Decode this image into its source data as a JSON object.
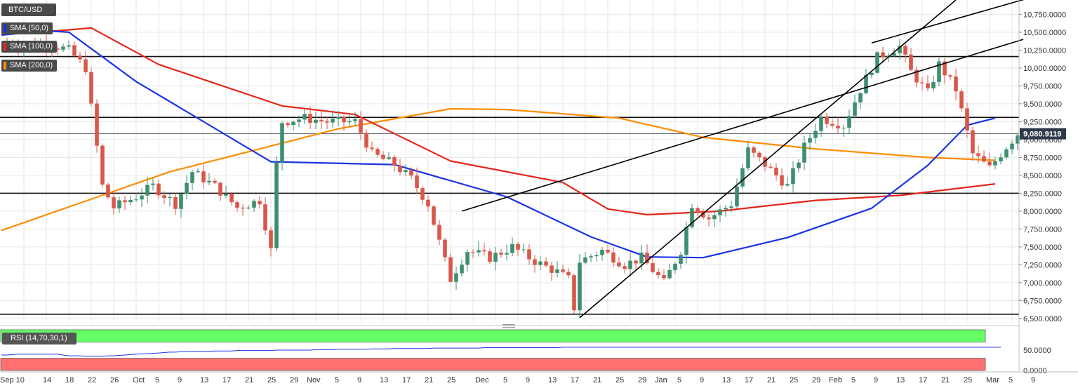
{
  "symbol": "BTC/USD",
  "indicators": [
    {
      "label": "SMA (50,0)",
      "color": "#1a33e6"
    },
    {
      "label": "SMA (100,0)",
      "color": "#e6261a"
    },
    {
      "label": "SMA (200,0)",
      "color": "#ff8c00"
    }
  ],
  "rsi_label": "RSI (14,70,30,1)",
  "colors": {
    "up": "#3d8f6e",
    "down": "#d9574a",
    "grid": "#e6e6e6",
    "price_tag": "#2f3a4a",
    "overbought_zone": "#66ff66",
    "oversold_zone": "#ff7070",
    "rsi_line": "#1a33e6"
  },
  "chart_data": {
    "type": "candlestick",
    "price_axis": {
      "ylim": [
        6450,
        10950
      ],
      "ticks": [
        "6,500.0000",
        "6,750.0000",
        "7,000.0000",
        "7,250.0000",
        "7,500.0000",
        "7,750.0000",
        "8,000.0000",
        "8,250.0000",
        "8,500.0000",
        "8,750.0000",
        "9,000.0000",
        "9,250.0000",
        "9,500.0000",
        "9,750.0000",
        "10,000.0000",
        "10,250.0000",
        "10,500.0000",
        "10,750.0000"
      ]
    },
    "last_price": "9,080.9119",
    "last_price_value": 9080.9,
    "date_labels": [
      "Sep 10",
      "14",
      "18",
      "22",
      "26",
      "Oct",
      "5",
      "9",
      "13",
      "17",
      "21",
      "25",
      "29",
      "Nov",
      "5",
      "9",
      "13",
      "17",
      "21",
      "25",
      "Dec",
      "5",
      "9",
      "13",
      "17",
      "21",
      "25",
      "29",
      "Jan",
      "5",
      "9",
      "13",
      "17",
      "21",
      "25",
      "29",
      "Feb",
      "5",
      "9",
      "13",
      "17",
      "21",
      "25",
      "Mar",
      "5",
      "9"
    ],
    "horizontal_levels": [
      10160,
      9310,
      8250,
      6560
    ],
    "trendlines": [
      {
        "from": [
          "Dec 18",
          6510
        ],
        "to": [
          "Feb 23",
          10950
        ]
      },
      {
        "from": [
          "Nov 27",
          8000
        ],
        "to": [
          "Mar 6",
          10400
        ]
      },
      {
        "from": [
          "Feb 8",
          10350
        ],
        "to": [
          "Mar 8",
          11000
        ]
      }
    ],
    "anchors": [
      [
        "Sep 6",
        10350
      ],
      [
        "Sep 10",
        10300
      ],
      [
        "Sep 14",
        10350
      ],
      [
        "Sep 18",
        10250
      ],
      [
        "Sep 21",
        10000
      ],
      [
        "Sep 24",
        8350
      ],
      [
        "Sep 26",
        8050
      ],
      [
        "Sep 30",
        8200
      ],
      [
        "Oct 3",
        8350
      ],
      [
        "Oct 7",
        8100
      ],
      [
        "Oct 10",
        8550
      ],
      [
        "Oct 14",
        8350
      ],
      [
        "Oct 18",
        8050
      ],
      [
        "Oct 22",
        8150
      ],
      [
        "Oct 24",
        7450
      ],
      [
        "Oct 25",
        8650
      ],
      [
        "Oct 26",
        9250
      ],
      [
        "Oct 30",
        9300
      ],
      [
        "Nov 3",
        9250
      ],
      [
        "Nov 8",
        9250
      ],
      [
        "Nov 11",
        8800
      ],
      [
        "Nov 15",
        8650
      ],
      [
        "Nov 18",
        8450
      ],
      [
        "Nov 21",
        8100
      ],
      [
        "Nov 24",
        7300
      ],
      [
        "Nov 25",
        7050
      ],
      [
        "Nov 28",
        7450
      ],
      [
        "Dec 2",
        7350
      ],
      [
        "Dec 6",
        7500
      ],
      [
        "Dec 10",
        7300
      ],
      [
        "Dec 14",
        7150
      ],
      [
        "Dec 16",
        7050
      ],
      [
        "Dec 17",
        6650
      ],
      [
        "Dec 18",
        7300
      ],
      [
        "Dec 22",
        7450
      ],
      [
        "Dec 26",
        7250
      ],
      [
        "Dec 29",
        7350
      ],
      [
        "Jan 2",
        7000
      ],
      [
        "Jan 5",
        7450
      ],
      [
        "Jan 7",
        8100
      ],
      [
        "Jan 10",
        7900
      ],
      [
        "Jan 14",
        8100
      ],
      [
        "Jan 17",
        8850
      ],
      [
        "Jan 20",
        8650
      ],
      [
        "Jan 24",
        8350
      ],
      [
        "Jan 27",
        8900
      ],
      [
        "Jan 30",
        9300
      ],
      [
        "Feb 3",
        9200
      ],
      [
        "Feb 6",
        9700
      ],
      [
        "Feb 9",
        10150
      ],
      [
        "Feb 13",
        10300
      ],
      [
        "Feb 15",
        9950
      ],
      [
        "Feb 18",
        9650
      ],
      [
        "Feb 20",
        10050
      ],
      [
        "Feb 23",
        9700
      ],
      [
        "Feb 26",
        8800
      ],
      [
        "Feb 29",
        8600
      ],
      [
        "Mar 3",
        8900
      ],
      [
        "Mar 5",
        9080
      ]
    ],
    "sma50": [
      [
        0,
        10460
      ],
      [
        8,
        10520
      ],
      [
        12,
        10500
      ],
      [
        24,
        9810
      ],
      [
        48,
        8690
      ],
      [
        70,
        8650
      ],
      [
        90,
        8200
      ],
      [
        105,
        7640
      ],
      [
        115,
        7360
      ],
      [
        125,
        7350
      ],
      [
        140,
        7630
      ],
      [
        155,
        8040
      ],
      [
        165,
        8640
      ],
      [
        172,
        9200
      ],
      [
        177,
        9300
      ]
    ],
    "sma100": [
      [
        0,
        10500
      ],
      [
        10,
        10520
      ],
      [
        16,
        10560
      ],
      [
        28,
        10050
      ],
      [
        50,
        9470
      ],
      [
        63,
        9350
      ],
      [
        80,
        8700
      ],
      [
        100,
        8400
      ],
      [
        108,
        8030
      ],
      [
        115,
        7950
      ],
      [
        128,
        8000
      ],
      [
        145,
        8150
      ],
      [
        160,
        8220
      ],
      [
        177,
        8380
      ]
    ],
    "sma200": [
      [
        0,
        7730
      ],
      [
        30,
        8550
      ],
      [
        60,
        9150
      ],
      [
        80,
        9430
      ],
      [
        90,
        9420
      ],
      [
        110,
        9300
      ],
      [
        125,
        9030
      ],
      [
        145,
        8870
      ],
      [
        165,
        8750
      ],
      [
        177,
        8710
      ]
    ],
    "rsi": {
      "ylim": [
        0,
        100
      ],
      "ticks": [
        "0.0000",
        "50.0000"
      ],
      "overbought": 70,
      "oversold": 30,
      "x_labels": [
        "Sep 10",
        "Mar 5"
      ],
      "values": [
        38,
        38,
        39,
        40,
        40,
        40,
        40,
        40,
        40,
        40,
        40,
        38,
        36,
        36,
        36,
        35,
        35,
        35,
        35,
        36,
        36,
        37,
        38,
        39,
        40,
        41,
        41,
        42,
        43,
        44,
        45,
        45,
        46,
        46,
        47,
        47,
        47,
        47,
        48,
        48,
        48,
        48,
        49,
        49,
        49,
        49,
        49,
        49,
        49,
        50,
        50,
        50,
        50,
        50,
        50,
        50,
        51,
        51,
        51,
        51,
        52,
        52,
        52,
        52,
        52,
        52,
        53,
        53,
        53,
        53,
        54,
        54,
        54,
        54,
        54,
        54,
        54,
        55,
        55,
        55,
        55,
        55,
        55,
        55,
        55,
        55,
        56,
        56,
        56,
        56,
        56,
        56,
        56,
        56,
        56,
        56,
        56,
        56,
        56,
        56,
        57,
        57,
        57,
        57,
        57,
        57,
        57,
        57,
        57,
        57,
        57,
        57,
        57,
        57,
        57,
        57,
        57,
        57,
        57,
        57,
        57,
        57,
        57,
        57,
        57,
        57,
        57,
        57,
        57,
        57,
        57,
        57,
        57,
        57,
        57,
        57,
        57,
        57,
        57,
        57,
        57,
        57,
        57,
        57,
        57,
        57,
        57,
        57,
        57,
        57,
        57,
        57,
        57,
        57,
        57,
        57,
        57,
        57,
        57,
        57,
        57,
        57,
        57,
        57,
        57,
        57,
        57,
        57,
        57,
        57,
        57,
        57,
        57,
        57,
        57,
        57,
        57,
        57,
        57
      ]
    }
  }
}
